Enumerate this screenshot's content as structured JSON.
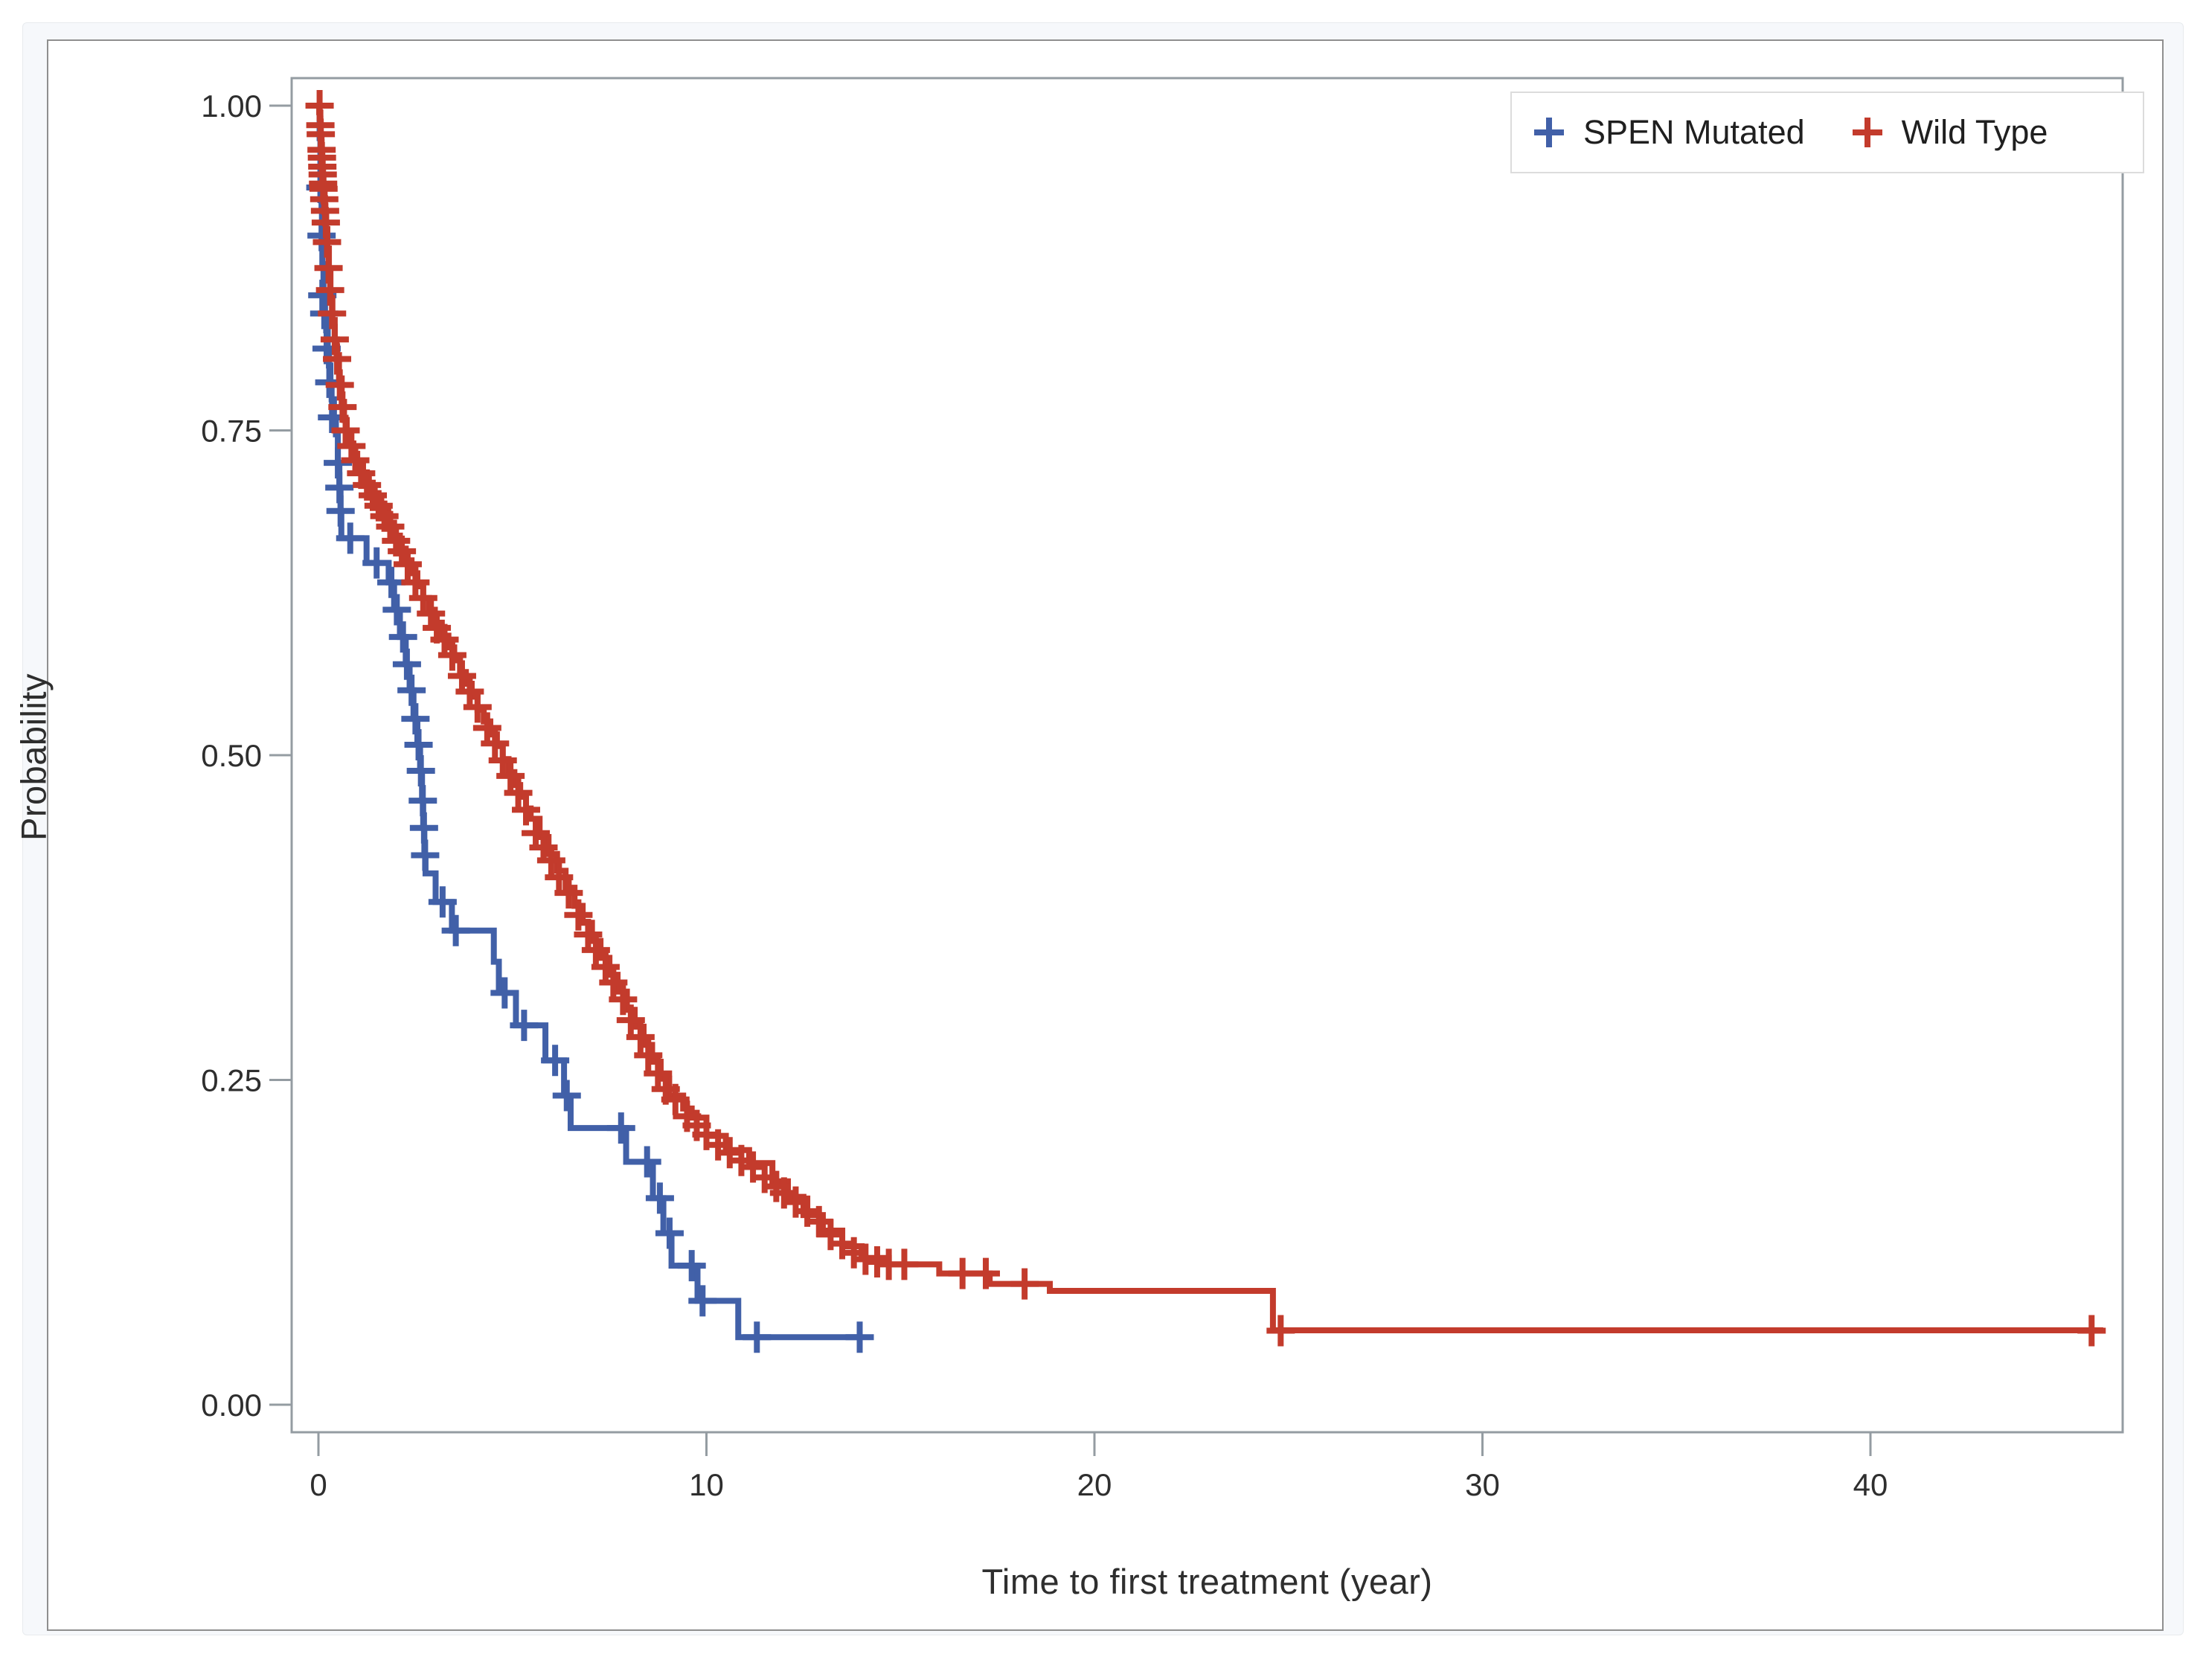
{
  "chart_data": {
    "type": "line",
    "subtype": "kaplan-meier-step-survival",
    "title": "",
    "xlabel": "Time to first treatment (year)",
    "ylabel": "Probability",
    "x_ticks": [
      0,
      10,
      20,
      30,
      40
    ],
    "y_tick_labels": [
      "1.00",
      "0.75",
      "0.50",
      "0.25",
      "0.00"
    ],
    "xlim": [
      -0.7,
      46.5
    ],
    "ylim": [
      -0.02,
      1.02
    ],
    "grid": false,
    "legend_position": "top-right-inside",
    "frame_color": "#949ca2",
    "tick_label_color": "#2e2e2e",
    "series": [
      {
        "name": "SPEN Mutated",
        "color": "#4160A8",
        "marker": "plus-censor",
        "end_year": 14.0,
        "steps": [
          [
            0,
            1.0
          ],
          [
            0.03,
            0.975
          ],
          [
            0.05,
            0.95
          ],
          [
            0.07,
            0.937
          ],
          [
            0.08,
            0.92
          ],
          [
            0.09,
            0.9
          ],
          [
            0.1,
            0.878
          ],
          [
            0.13,
            0.854
          ],
          [
            0.17,
            0.84
          ],
          [
            0.2,
            0.827
          ],
          [
            0.24,
            0.813
          ],
          [
            0.27,
            0.8
          ],
          [
            0.31,
            0.787
          ],
          [
            0.34,
            0.774
          ],
          [
            0.4,
            0.76
          ],
          [
            0.45,
            0.747
          ],
          [
            0.5,
            0.725
          ],
          [
            0.54,
            0.706
          ],
          [
            0.57,
            0.688
          ],
          [
            0.59,
            0.667
          ],
          [
            1.24,
            0.648
          ],
          [
            1.81,
            0.633
          ],
          [
            1.95,
            0.612
          ],
          [
            2.1,
            0.591
          ],
          [
            2.25,
            0.57
          ],
          [
            2.35,
            0.55
          ],
          [
            2.45,
            0.528
          ],
          [
            2.55,
            0.508
          ],
          [
            2.62,
            0.488
          ],
          [
            2.67,
            0.465
          ],
          [
            2.7,
            0.444
          ],
          [
            2.73,
            0.423
          ],
          [
            2.76,
            0.409
          ],
          [
            3.02,
            0.387
          ],
          [
            3.44,
            0.365
          ],
          [
            4.52,
            0.341
          ],
          [
            4.65,
            0.317
          ],
          [
            5.09,
            0.292
          ],
          [
            5.85,
            0.265
          ],
          [
            6.33,
            0.238
          ],
          [
            6.5,
            0.213
          ],
          [
            7.93,
            0.187
          ],
          [
            8.62,
            0.159
          ],
          [
            8.89,
            0.132
          ],
          [
            9.1,
            0.107
          ],
          [
            9.77,
            0.08
          ],
          [
            10.82,
            0.052
          ]
        ],
        "censors": [
          [
            0.05,
            0.937
          ],
          [
            0.08,
            0.9
          ],
          [
            0.1,
            0.854
          ],
          [
            0.15,
            0.84
          ],
          [
            0.21,
            0.813
          ],
          [
            0.28,
            0.787
          ],
          [
            0.35,
            0.76
          ],
          [
            0.5,
            0.725
          ],
          [
            0.54,
            0.706
          ],
          [
            0.57,
            0.688
          ],
          [
            0.82,
            0.667
          ],
          [
            1.5,
            0.648
          ],
          [
            1.88,
            0.633
          ],
          [
            2.02,
            0.612
          ],
          [
            2.18,
            0.591
          ],
          [
            2.28,
            0.57
          ],
          [
            2.4,
            0.55
          ],
          [
            2.5,
            0.528
          ],
          [
            2.58,
            0.508
          ],
          [
            2.64,
            0.488
          ],
          [
            2.69,
            0.465
          ],
          [
            2.72,
            0.444
          ],
          [
            2.75,
            0.423
          ],
          [
            3.2,
            0.387
          ],
          [
            3.54,
            0.365
          ],
          [
            4.8,
            0.317
          ],
          [
            5.3,
            0.292
          ],
          [
            6.1,
            0.265
          ],
          [
            6.4,
            0.238
          ],
          [
            7.8,
            0.213
          ],
          [
            8.47,
            0.187
          ],
          [
            8.8,
            0.159
          ],
          [
            9.05,
            0.132
          ],
          [
            9.62,
            0.107
          ],
          [
            9.9,
            0.08
          ],
          [
            11.3,
            0.052
          ],
          [
            13.95,
            0.052
          ]
        ]
      },
      {
        "name": "Wild Type",
        "color": "#C33B2C",
        "marker": "plus-censor",
        "end_year": 46.0,
        "steps": [
          [
            0,
            1.0
          ],
          [
            0.02,
            0.995
          ],
          [
            0.04,
            0.99
          ],
          [
            0.05,
            0.985
          ],
          [
            0.06,
            0.978
          ],
          [
            0.07,
            0.972
          ],
          [
            0.08,
            0.966
          ],
          [
            0.09,
            0.96
          ],
          [
            0.1,
            0.953
          ],
          [
            0.11,
            0.947
          ],
          [
            0.12,
            0.94
          ],
          [
            0.14,
            0.932
          ],
          [
            0.16,
            0.923
          ],
          [
            0.18,
            0.915
          ],
          [
            0.2,
            0.905
          ],
          [
            0.23,
            0.89
          ],
          [
            0.27,
            0.872
          ],
          [
            0.31,
            0.852
          ],
          [
            0.36,
            0.835
          ],
          [
            0.42,
            0.82
          ],
          [
            0.47,
            0.808
          ],
          [
            0.53,
            0.79
          ],
          [
            0.6,
            0.772
          ],
          [
            0.66,
            0.758
          ],
          [
            0.73,
            0.745
          ],
          [
            0.82,
            0.74
          ],
          [
            0.9,
            0.732
          ],
          [
            1.0,
            0.724
          ],
          [
            1.15,
            0.714
          ],
          [
            1.3,
            0.705
          ],
          [
            1.45,
            0.697
          ],
          [
            1.62,
            0.688
          ],
          [
            1.8,
            0.679
          ],
          [
            1.95,
            0.669
          ],
          [
            2.1,
            0.659
          ],
          [
            2.25,
            0.65
          ],
          [
            2.4,
            0.64
          ],
          [
            2.55,
            0.63
          ],
          [
            2.7,
            0.621
          ],
          [
            2.85,
            0.612
          ],
          [
            3.0,
            0.602
          ],
          [
            3.18,
            0.592
          ],
          [
            3.35,
            0.583
          ],
          [
            3.5,
            0.573
          ],
          [
            3.65,
            0.564
          ],
          [
            3.8,
            0.555
          ],
          [
            3.95,
            0.545
          ],
          [
            4.1,
            0.535
          ],
          [
            4.26,
            0.526
          ],
          [
            4.43,
            0.516
          ],
          [
            4.6,
            0.507
          ],
          [
            4.75,
            0.497
          ],
          [
            4.9,
            0.487
          ],
          [
            5.05,
            0.477
          ],
          [
            5.2,
            0.468
          ],
          [
            5.35,
            0.459
          ],
          [
            5.47,
            0.451
          ],
          [
            5.7,
            0.437
          ],
          [
            5.93,
            0.424
          ],
          [
            6.15,
            0.411
          ],
          [
            6.37,
            0.398
          ],
          [
            6.6,
            0.384
          ],
          [
            6.81,
            0.371
          ],
          [
            7.05,
            0.357
          ],
          [
            7.27,
            0.344
          ],
          [
            7.5,
            0.331
          ],
          [
            7.71,
            0.318
          ],
          [
            7.95,
            0.304
          ],
          [
            8.15,
            0.291
          ],
          [
            8.38,
            0.277
          ],
          [
            8.6,
            0.264
          ],
          [
            8.82,
            0.251
          ],
          [
            9.04,
            0.238
          ],
          [
            9.4,
            0.228
          ],
          [
            9.62,
            0.221
          ],
          [
            10.0,
            0.207
          ],
          [
            10.5,
            0.196
          ],
          [
            11.1,
            0.186
          ],
          [
            11.7,
            0.172
          ],
          [
            12.1,
            0.16
          ],
          [
            12.5,
            0.146
          ],
          [
            13.0,
            0.134
          ],
          [
            13.5,
            0.122
          ],
          [
            14.0,
            0.113
          ],
          [
            14.7,
            0.108
          ],
          [
            16.0,
            0.101
          ],
          [
            17.3,
            0.093
          ],
          [
            18.85,
            0.0876
          ],
          [
            24.6,
            0.0573
          ]
        ],
        "censors": [
          [
            0.03,
            1.0
          ],
          [
            0.05,
            0.985
          ],
          [
            0.06,
            0.978
          ],
          [
            0.08,
            0.966
          ],
          [
            0.09,
            0.96
          ],
          [
            0.1,
            0.953
          ],
          [
            0.11,
            0.947
          ],
          [
            0.12,
            0.94
          ],
          [
            0.13,
            0.936
          ],
          [
            0.15,
            0.928
          ],
          [
            0.17,
            0.919
          ],
          [
            0.19,
            0.91
          ],
          [
            0.22,
            0.895
          ],
          [
            0.26,
            0.875
          ],
          [
            0.3,
            0.858
          ],
          [
            0.35,
            0.84
          ],
          [
            0.42,
            0.82
          ],
          [
            0.48,
            0.805
          ],
          [
            0.55,
            0.785
          ],
          [
            0.62,
            0.768
          ],
          [
            0.7,
            0.75
          ],
          [
            0.85,
            0.738
          ],
          [
            0.95,
            0.727
          ],
          [
            1.1,
            0.717
          ],
          [
            1.25,
            0.708
          ],
          [
            1.4,
            0.7
          ],
          [
            1.55,
            0.692
          ],
          [
            1.7,
            0.684
          ],
          [
            1.85,
            0.676
          ],
          [
            2.0,
            0.665
          ],
          [
            2.15,
            0.657
          ],
          [
            2.3,
            0.647
          ],
          [
            2.5,
            0.633
          ],
          [
            2.7,
            0.621
          ],
          [
            2.9,
            0.609
          ],
          [
            3.05,
            0.598
          ],
          [
            3.25,
            0.589
          ],
          [
            3.45,
            0.577
          ],
          [
            3.7,
            0.561
          ],
          [
            3.9,
            0.549
          ],
          [
            4.1,
            0.537
          ],
          [
            4.35,
            0.521
          ],
          [
            4.55,
            0.509
          ],
          [
            4.75,
            0.496
          ],
          [
            4.95,
            0.484
          ],
          [
            5.15,
            0.471
          ],
          [
            5.35,
            0.458
          ],
          [
            5.6,
            0.44
          ],
          [
            5.8,
            0.429
          ],
          [
            6.0,
            0.419
          ],
          [
            6.2,
            0.406
          ],
          [
            6.45,
            0.394
          ],
          [
            6.7,
            0.377
          ],
          [
            6.95,
            0.362
          ],
          [
            7.15,
            0.35
          ],
          [
            7.4,
            0.337
          ],
          [
            7.6,
            0.325
          ],
          [
            7.85,
            0.312
          ],
          [
            8.05,
            0.296
          ],
          [
            8.3,
            0.283
          ],
          [
            8.5,
            0.269
          ],
          [
            8.75,
            0.255
          ],
          [
            8.95,
            0.243
          ],
          [
            9.2,
            0.235
          ],
          [
            9.5,
            0.222
          ],
          [
            9.75,
            0.215
          ],
          [
            10.0,
            0.208
          ],
          [
            10.3,
            0.2
          ],
          [
            10.6,
            0.194
          ],
          [
            10.9,
            0.188
          ],
          [
            11.2,
            0.183
          ],
          [
            11.5,
            0.175
          ],
          [
            11.8,
            0.168
          ],
          [
            12.0,
            0.163
          ],
          [
            12.3,
            0.156
          ],
          [
            12.6,
            0.149
          ],
          [
            12.9,
            0.141
          ],
          [
            13.2,
            0.131
          ],
          [
            13.5,
            0.124
          ],
          [
            13.8,
            0.117
          ],
          [
            14.1,
            0.112
          ],
          [
            14.4,
            0.11
          ],
          [
            14.7,
            0.108
          ],
          [
            15.1,
            0.108
          ],
          [
            16.6,
            0.101
          ],
          [
            17.2,
            0.101
          ],
          [
            18.2,
            0.093
          ],
          [
            24.8,
            0.057
          ],
          [
            45.7,
            0.057
          ]
        ]
      }
    ]
  },
  "legend": {
    "marker_glyph": "+",
    "items": [
      {
        "label": "SPEN Mutated",
        "color": "#4160A8"
      },
      {
        "label": "Wild Type",
        "color": "#C33B2C"
      }
    ]
  }
}
